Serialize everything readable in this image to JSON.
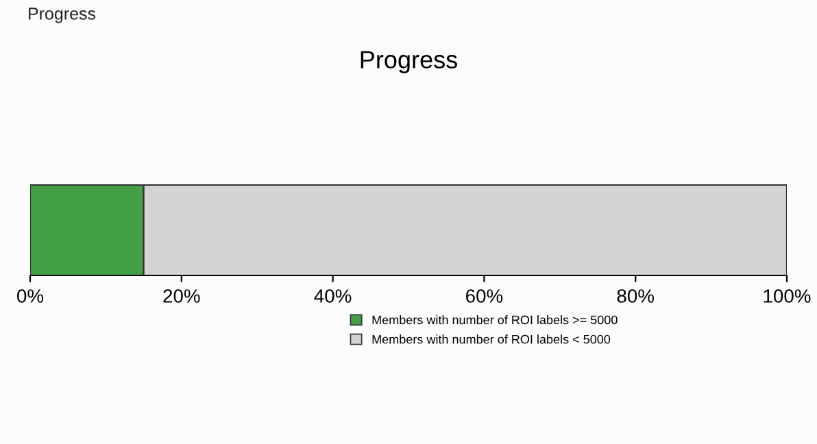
{
  "chart_data": {
    "type": "bar",
    "title": "Progress",
    "orientation": "horizontal",
    "stacked": true,
    "categories": [
      null
    ],
    "series": [
      {
        "name": "Members with number of ROI labels >= 5000",
        "color": "#43a047",
        "values": [
          15
        ]
      },
      {
        "name": "Members with number of ROI labels < 5000",
        "color": "#d3d3d3",
        "values": [
          85
        ]
      }
    ],
    "xlim": [
      0,
      100
    ],
    "xticks": [
      {
        "value": 0,
        "label": "0%"
      },
      {
        "value": 20,
        "label": "20%"
      },
      {
        "value": 40,
        "label": "40%"
      },
      {
        "value": 60,
        "label": "60%"
      },
      {
        "value": 80,
        "label": "80%"
      },
      {
        "value": 100,
        "label": "100%"
      }
    ],
    "tick_labels": "x",
    "grid": false,
    "legend": "bottom",
    "annotations": [
      "Progress"
    ]
  }
}
